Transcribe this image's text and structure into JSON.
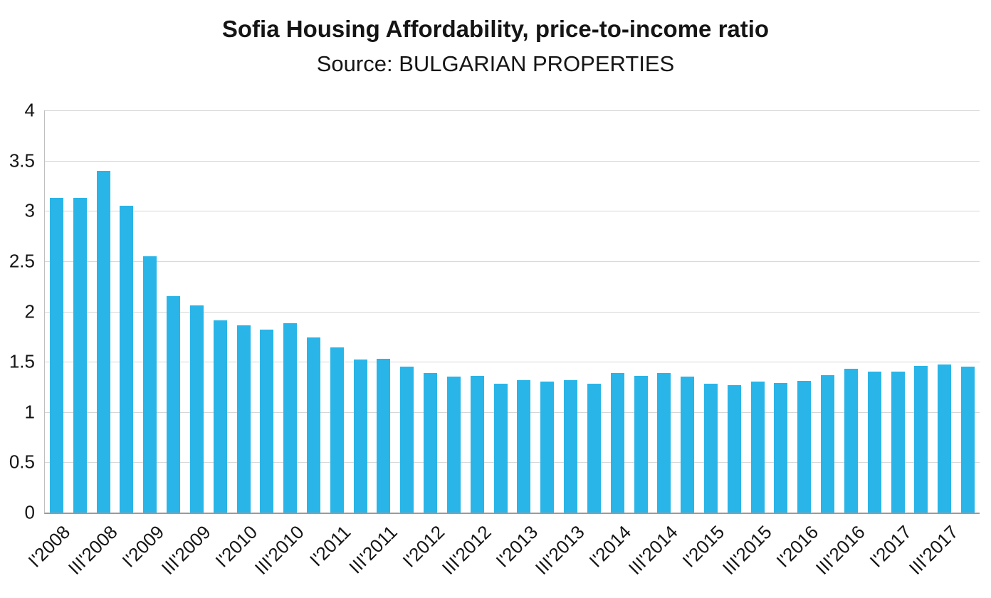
{
  "chart_data": {
    "type": "bar",
    "title": "Sofia Housing Affordability, price-to-income ratio",
    "subtitle": "Source: BULGARIAN PROPERTIES",
    "xlabel": "",
    "ylabel": "",
    "ylim": [
      0,
      4
    ],
    "y_tick_step": 0.5,
    "y_ticks": [
      "4",
      "3.5",
      "3",
      "2.5",
      "2",
      "1.5",
      "1",
      "0.5",
      "0"
    ],
    "grid": true,
    "legend_position": "none",
    "x_tick_every": 2,
    "x_tick_labels": [
      "I'2008",
      "III'2008",
      "I'2009",
      "III'2009",
      "I'2010",
      "III'2010",
      "I'2011",
      "III'2011",
      "I'2012",
      "III'2012",
      "I'2013",
      "III'2013",
      "I'2014",
      "III'2014",
      "I'2015",
      "III'2015",
      "I'2016",
      "III'2016",
      "I'2017",
      "III'2017"
    ],
    "categories": [
      "I'2008",
      "II'2008",
      "III'2008",
      "IV'2008",
      "I'2009",
      "II'2009",
      "III'2009",
      "IV'2009",
      "I'2010",
      "II'2010",
      "III'2010",
      "IV'2010",
      "I'2011",
      "II'2011",
      "III'2011",
      "IV'2011",
      "I'2012",
      "II'2012",
      "III'2012",
      "IV'2012",
      "I'2013",
      "II'2013",
      "III'2013",
      "IV'2013",
      "I'2014",
      "II'2014",
      "III'2014",
      "IV'2014",
      "I'2015",
      "II'2015",
      "III'2015",
      "IV'2015",
      "I'2016",
      "II'2016",
      "III'2016",
      "IV'2016",
      "I'2017",
      "II'2017",
      "III'2017",
      "IV'2017"
    ],
    "values": [
      3.13,
      3.13,
      3.4,
      3.05,
      2.55,
      2.15,
      2.06,
      1.91,
      1.86,
      1.82,
      1.88,
      1.74,
      1.64,
      1.52,
      1.53,
      1.45,
      1.39,
      1.35,
      1.36,
      1.28,
      1.32,
      1.3,
      1.32,
      1.28,
      1.39,
      1.36,
      1.39,
      1.35,
      1.28,
      1.27,
      1.3,
      1.29,
      1.31,
      1.37,
      1.43,
      1.4,
      1.4,
      1.46,
      1.47,
      1.45
    ],
    "colors": {
      "bar": "#29b5e8",
      "gridline": "#d6d6d6",
      "axis": "#9b9b9b",
      "text": "#151515",
      "background": "#ffffff"
    }
  }
}
